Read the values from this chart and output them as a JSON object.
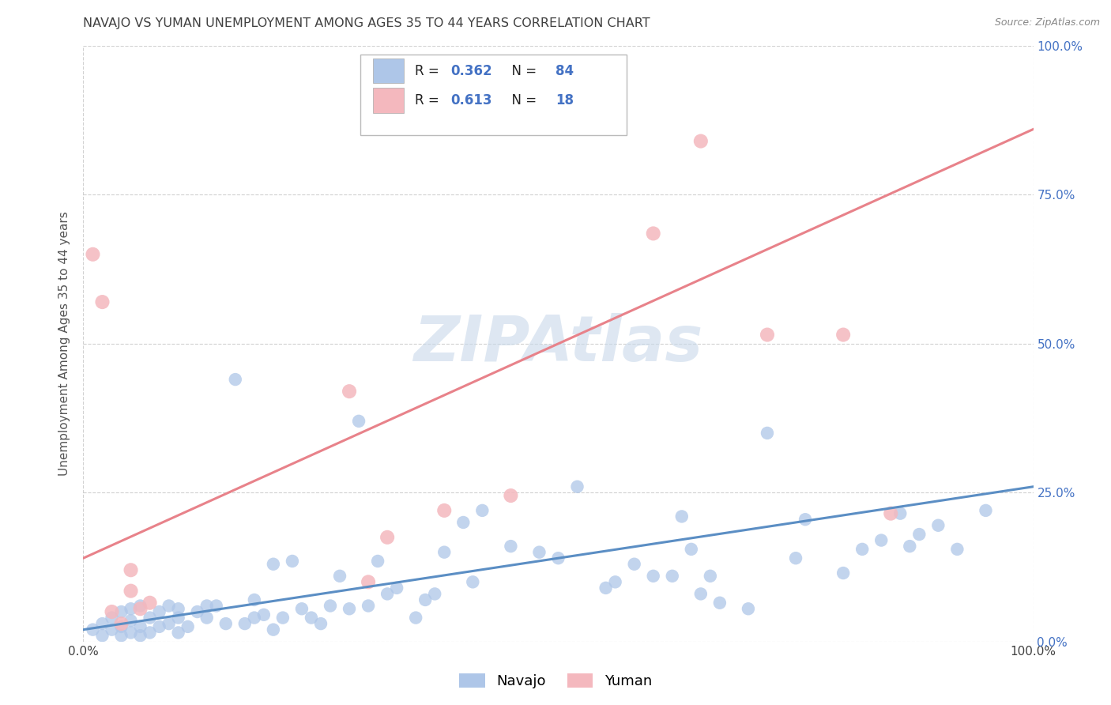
{
  "title": "NAVAJO VS YUMAN UNEMPLOYMENT AMONG AGES 35 TO 44 YEARS CORRELATION CHART",
  "source": "Source: ZipAtlas.com",
  "ylabel": "Unemployment Among Ages 35 to 44 years",
  "xlim": [
    0,
    1
  ],
  "ylim": [
    0,
    1
  ],
  "y_tick_labels": [
    "0.0%",
    "25.0%",
    "50.0%",
    "75.0%",
    "100.0%"
  ],
  "y_tick_positions": [
    0.0,
    0.25,
    0.5,
    0.75,
    1.0
  ],
  "watermark": "ZIPAtlas",
  "legend_navajo_label": "Navajo",
  "legend_yuman_label": "Yuman",
  "navajo_color": "#aec6e8",
  "yuman_color": "#f4b8be",
  "navajo_line_color": "#5b8ec4",
  "yuman_line_color": "#e8828a",
  "right_tick_color": "#4472c4",
  "background_color": "#ffffff",
  "grid_color": "#cccccc",
  "title_color": "#404040",
  "axis_label_color": "#555555",
  "navajo_scatter": [
    [
      0.01,
      0.02
    ],
    [
      0.02,
      0.01
    ],
    [
      0.02,
      0.03
    ],
    [
      0.03,
      0.02
    ],
    [
      0.03,
      0.04
    ],
    [
      0.04,
      0.01
    ],
    [
      0.04,
      0.025
    ],
    [
      0.04,
      0.05
    ],
    [
      0.05,
      0.015
    ],
    [
      0.05,
      0.035
    ],
    [
      0.05,
      0.055
    ],
    [
      0.06,
      0.01
    ],
    [
      0.06,
      0.025
    ],
    [
      0.06,
      0.06
    ],
    [
      0.07,
      0.015
    ],
    [
      0.07,
      0.04
    ],
    [
      0.08,
      0.025
    ],
    [
      0.08,
      0.05
    ],
    [
      0.09,
      0.03
    ],
    [
      0.09,
      0.06
    ],
    [
      0.1,
      0.015
    ],
    [
      0.1,
      0.04
    ],
    [
      0.1,
      0.055
    ],
    [
      0.11,
      0.025
    ],
    [
      0.12,
      0.05
    ],
    [
      0.13,
      0.04
    ],
    [
      0.13,
      0.06
    ],
    [
      0.14,
      0.06
    ],
    [
      0.15,
      0.03
    ],
    [
      0.16,
      0.44
    ],
    [
      0.17,
      0.03
    ],
    [
      0.18,
      0.04
    ],
    [
      0.18,
      0.07
    ],
    [
      0.19,
      0.045
    ],
    [
      0.2,
      0.02
    ],
    [
      0.2,
      0.13
    ],
    [
      0.21,
      0.04
    ],
    [
      0.22,
      0.135
    ],
    [
      0.23,
      0.055
    ],
    [
      0.24,
      0.04
    ],
    [
      0.25,
      0.03
    ],
    [
      0.26,
      0.06
    ],
    [
      0.27,
      0.11
    ],
    [
      0.28,
      0.055
    ],
    [
      0.29,
      0.37
    ],
    [
      0.3,
      0.06
    ],
    [
      0.31,
      0.135
    ],
    [
      0.32,
      0.08
    ],
    [
      0.33,
      0.09
    ],
    [
      0.35,
      0.04
    ],
    [
      0.36,
      0.07
    ],
    [
      0.37,
      0.08
    ],
    [
      0.38,
      0.15
    ],
    [
      0.4,
      0.2
    ],
    [
      0.41,
      0.1
    ],
    [
      0.42,
      0.22
    ],
    [
      0.45,
      0.16
    ],
    [
      0.48,
      0.15
    ],
    [
      0.5,
      0.14
    ],
    [
      0.52,
      0.26
    ],
    [
      0.55,
      0.09
    ],
    [
      0.56,
      0.1
    ],
    [
      0.58,
      0.13
    ],
    [
      0.6,
      0.11
    ],
    [
      0.62,
      0.11
    ],
    [
      0.63,
      0.21
    ],
    [
      0.64,
      0.155
    ],
    [
      0.65,
      0.08
    ],
    [
      0.66,
      0.11
    ],
    [
      0.67,
      0.065
    ],
    [
      0.7,
      0.055
    ],
    [
      0.72,
      0.35
    ],
    [
      0.75,
      0.14
    ],
    [
      0.76,
      0.205
    ],
    [
      0.8,
      0.115
    ],
    [
      0.82,
      0.155
    ],
    [
      0.84,
      0.17
    ],
    [
      0.86,
      0.215
    ],
    [
      0.87,
      0.16
    ],
    [
      0.88,
      0.18
    ],
    [
      0.9,
      0.195
    ],
    [
      0.92,
      0.155
    ],
    [
      0.95,
      0.22
    ]
  ],
  "yuman_scatter": [
    [
      0.01,
      0.65
    ],
    [
      0.02,
      0.57
    ],
    [
      0.03,
      0.05
    ],
    [
      0.04,
      0.03
    ],
    [
      0.05,
      0.085
    ],
    [
      0.05,
      0.12
    ],
    [
      0.06,
      0.055
    ],
    [
      0.07,
      0.065
    ],
    [
      0.28,
      0.42
    ],
    [
      0.3,
      0.1
    ],
    [
      0.32,
      0.175
    ],
    [
      0.38,
      0.22
    ],
    [
      0.45,
      0.245
    ],
    [
      0.6,
      0.685
    ],
    [
      0.65,
      0.84
    ],
    [
      0.72,
      0.515
    ],
    [
      0.8,
      0.515
    ],
    [
      0.85,
      0.215
    ]
  ],
  "navajo_line": [
    0.0,
    0.02,
    1.0,
    0.26
  ],
  "yuman_line": [
    0.0,
    0.14,
    1.0,
    0.86
  ]
}
